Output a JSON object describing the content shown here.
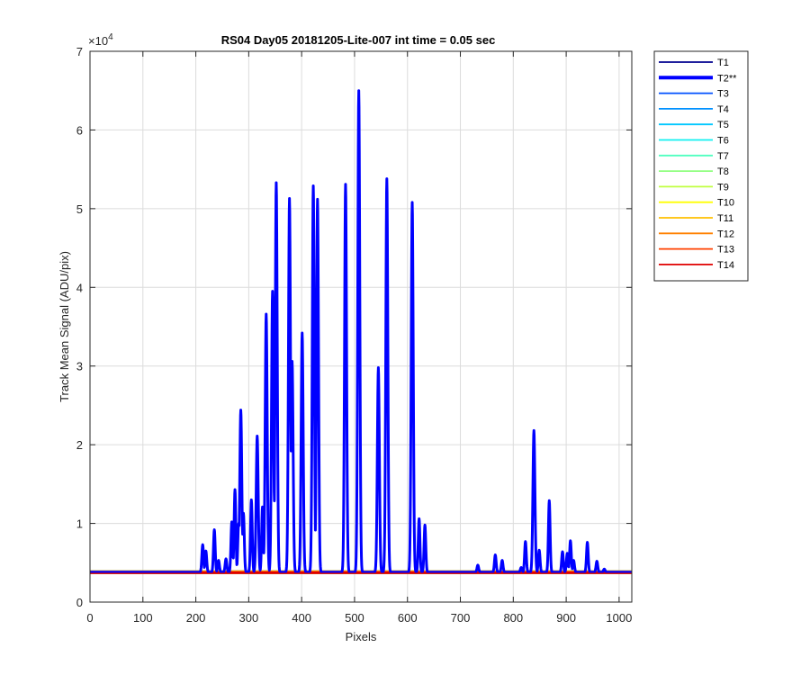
{
  "chart_data": {
    "type": "line",
    "title": "RS04 Day05 20181205-Lite-007 int time = 0.05 sec",
    "xlabel": "Pixels",
    "ylabel": "Track Mean Signal (ADU/pix)",
    "xlim": [
      0,
      1024
    ],
    "ylim": [
      0,
      70000
    ],
    "xticks": [
      "0",
      "100",
      "200",
      "300",
      "400",
      "500",
      "600",
      "700",
      "800",
      "900",
      "1000"
    ],
    "yticks": [
      "0",
      "1",
      "2",
      "3",
      "4",
      "5",
      "6",
      "7"
    ],
    "y_exponent_label": "×10",
    "y_exponent_power": "4",
    "grid": true,
    "legend_position": "outside-right",
    "baseline": 3800,
    "series": [
      {
        "name": "T1",
        "color": "#00008f",
        "width": 1.5
      },
      {
        "name": "T2**",
        "color": "#0000ff",
        "width": 4,
        "peaks": [
          [
            213,
            7300
          ],
          [
            219,
            6500
          ],
          [
            235,
            9200
          ],
          [
            243,
            5300
          ],
          [
            257,
            5500
          ],
          [
            268,
            10200
          ],
          [
            274,
            14300
          ],
          [
            281,
            10000
          ],
          [
            285,
            24400
          ],
          [
            290,
            11300
          ],
          [
            305,
            13000
          ],
          [
            316,
            21100
          ],
          [
            326,
            12100
          ],
          [
            333,
            36600
          ],
          [
            345,
            39500
          ],
          [
            352,
            53300
          ],
          [
            377,
            51300
          ],
          [
            382,
            30600
          ],
          [
            401,
            34200
          ],
          [
            422,
            52900
          ],
          [
            430,
            51200
          ],
          [
            483,
            53100
          ],
          [
            508,
            65000
          ],
          [
            545,
            29800
          ],
          [
            561,
            53800
          ],
          [
            609,
            50800
          ],
          [
            622,
            10600
          ],
          [
            633,
            9800
          ],
          [
            733,
            4700
          ],
          [
            766,
            6000
          ],
          [
            779,
            5300
          ],
          [
            815,
            4400
          ],
          [
            823,
            7700
          ],
          [
            839,
            21800
          ],
          [
            849,
            6600
          ],
          [
            868,
            12900
          ],
          [
            893,
            6400
          ],
          [
            902,
            6200
          ],
          [
            908,
            7800
          ],
          [
            914,
            5300
          ],
          [
            940,
            7600
          ],
          [
            958,
            5200
          ],
          [
            972,
            4200
          ]
        ]
      },
      {
        "name": "T3",
        "color": "#0050ff",
        "width": 1.5
      },
      {
        "name": "T4",
        "color": "#0090ff",
        "width": 1.5
      },
      {
        "name": "T5",
        "color": "#00c8ff",
        "width": 1.5
      },
      {
        "name": "T6",
        "color": "#10f0f0",
        "width": 1.5
      },
      {
        "name": "T7",
        "color": "#50ffc0",
        "width": 1.5
      },
      {
        "name": "T8",
        "color": "#90ff80",
        "width": 1.5
      },
      {
        "name": "T9",
        "color": "#c0ff40",
        "width": 1.5
      },
      {
        "name": "T10",
        "color": "#ffff00",
        "width": 1.5
      },
      {
        "name": "T11",
        "color": "#ffc000",
        "width": 1.5
      },
      {
        "name": "T12",
        "color": "#ff8000",
        "width": 1.5
      },
      {
        "name": "T13",
        "color": "#ff4000",
        "width": 1.5
      },
      {
        "name": "T14",
        "color": "#e00000",
        "width": 1.5
      }
    ]
  }
}
